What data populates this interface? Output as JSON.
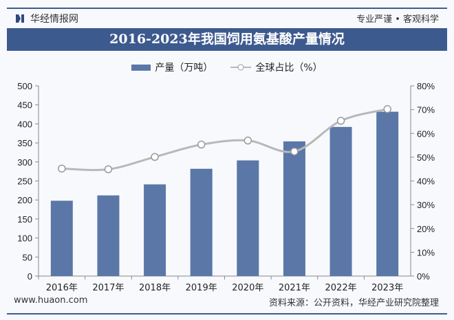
{
  "header": {
    "brand": "华经情报网",
    "motto": "专业严谨 • 客观科学",
    "title": "2016-2023年我国饲用氨基酸产量情况"
  },
  "footer": {
    "site": "www.huaon.com",
    "source": "资料来源：公开资料，华经产业研究院整理"
  },
  "chart_data": {
    "type": "bar+line",
    "title": "2016-2023年我国饲用氨基酸产量情况",
    "categories": [
      "2016年",
      "2017年",
      "2018年",
      "2019年",
      "2020年",
      "2021年",
      "2022年",
      "2023年"
    ],
    "series": [
      {
        "name": "产量（万吨）",
        "type": "bar",
        "axis": "left",
        "color": "#5a77a8",
        "values": [
          198,
          212,
          241,
          282,
          304,
          354,
          392,
          432
        ]
      },
      {
        "name": "全球占比（%）",
        "type": "line",
        "axis": "right",
        "color": "#b8b8b8",
        "values": [
          45.2,
          44.9,
          50.1,
          55.3,
          57.0,
          52.4,
          65.3,
          70.2
        ]
      }
    ],
    "y_left": {
      "range": [
        0,
        500
      ],
      "ticks": [
        "0",
        "50",
        "100",
        "150",
        "200",
        "250",
        "300",
        "350",
        "400",
        "450",
        "500"
      ]
    },
    "y_right": {
      "range": [
        0,
        80
      ],
      "ticks": [
        "0%",
        "10%",
        "20%",
        "30%",
        "40%",
        "50%",
        "60%",
        "70%",
        "80%"
      ]
    },
    "legend": "top",
    "grid": false
  }
}
